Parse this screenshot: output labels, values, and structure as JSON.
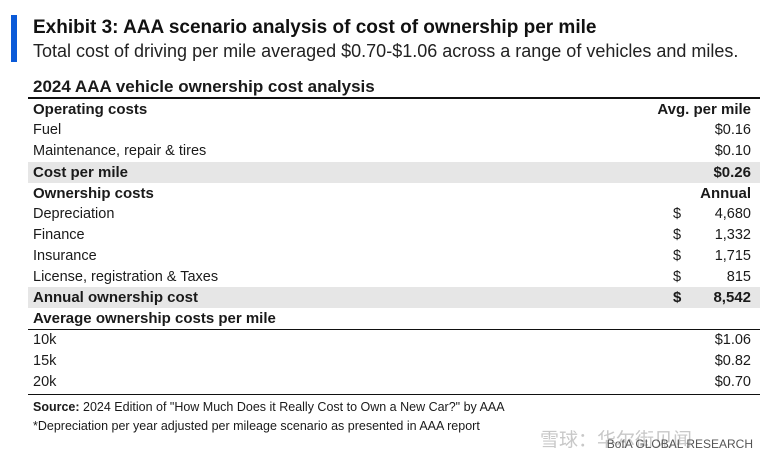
{
  "header": {
    "title": "Exhibit 3: AAA scenario analysis of cost of ownership per mile",
    "subtitle": "Total cost of driving per mile averaged $0.70-$1.06 across a range of vehicles and miles."
  },
  "table": {
    "title": "2024 AAA vehicle ownership cost analysis",
    "operating": {
      "header": "Operating costs",
      "col_header": "Avg. per mile",
      "rows": [
        {
          "label": "Fuel",
          "value": "$0.16"
        },
        {
          "label": "Maintenance, repair & tires",
          "value": "$0.10"
        }
      ],
      "total": {
        "label": "Cost per mile",
        "value": "$0.26"
      }
    },
    "ownership": {
      "header": "Ownership costs",
      "col_header": "Annual",
      "rows": [
        {
          "label": "Depreciation",
          "dollar": "$",
          "value": "4,680"
        },
        {
          "label": "Finance",
          "dollar": "$",
          "value": "1,332"
        },
        {
          "label": "Insurance",
          "dollar": "$",
          "value": "1,715"
        },
        {
          "label": "License, registration & Taxes",
          "dollar": "$",
          "value": "815"
        }
      ],
      "total": {
        "label": "Annual ownership cost",
        "dollar": "$",
        "value": "8,542"
      }
    },
    "per_mile": {
      "header": "Average ownership costs per mile",
      "rows": [
        {
          "label": "10k",
          "value": "$1.06"
        },
        {
          "label": "15k",
          "value": "$0.82"
        },
        {
          "label": "20k",
          "value": "$0.70"
        }
      ]
    }
  },
  "footer": {
    "source_label": "Source:",
    "source_text": " 2024 Edition of \"How Much Does it Really Cost to Own a New Car?\" by AAA",
    "footnote": "*Depreciation per year adjusted per mileage scenario as presented in AAA report",
    "watermark": "雪球：华尔街见闻",
    "brand": "BofA GLOBAL RESEARCH"
  }
}
